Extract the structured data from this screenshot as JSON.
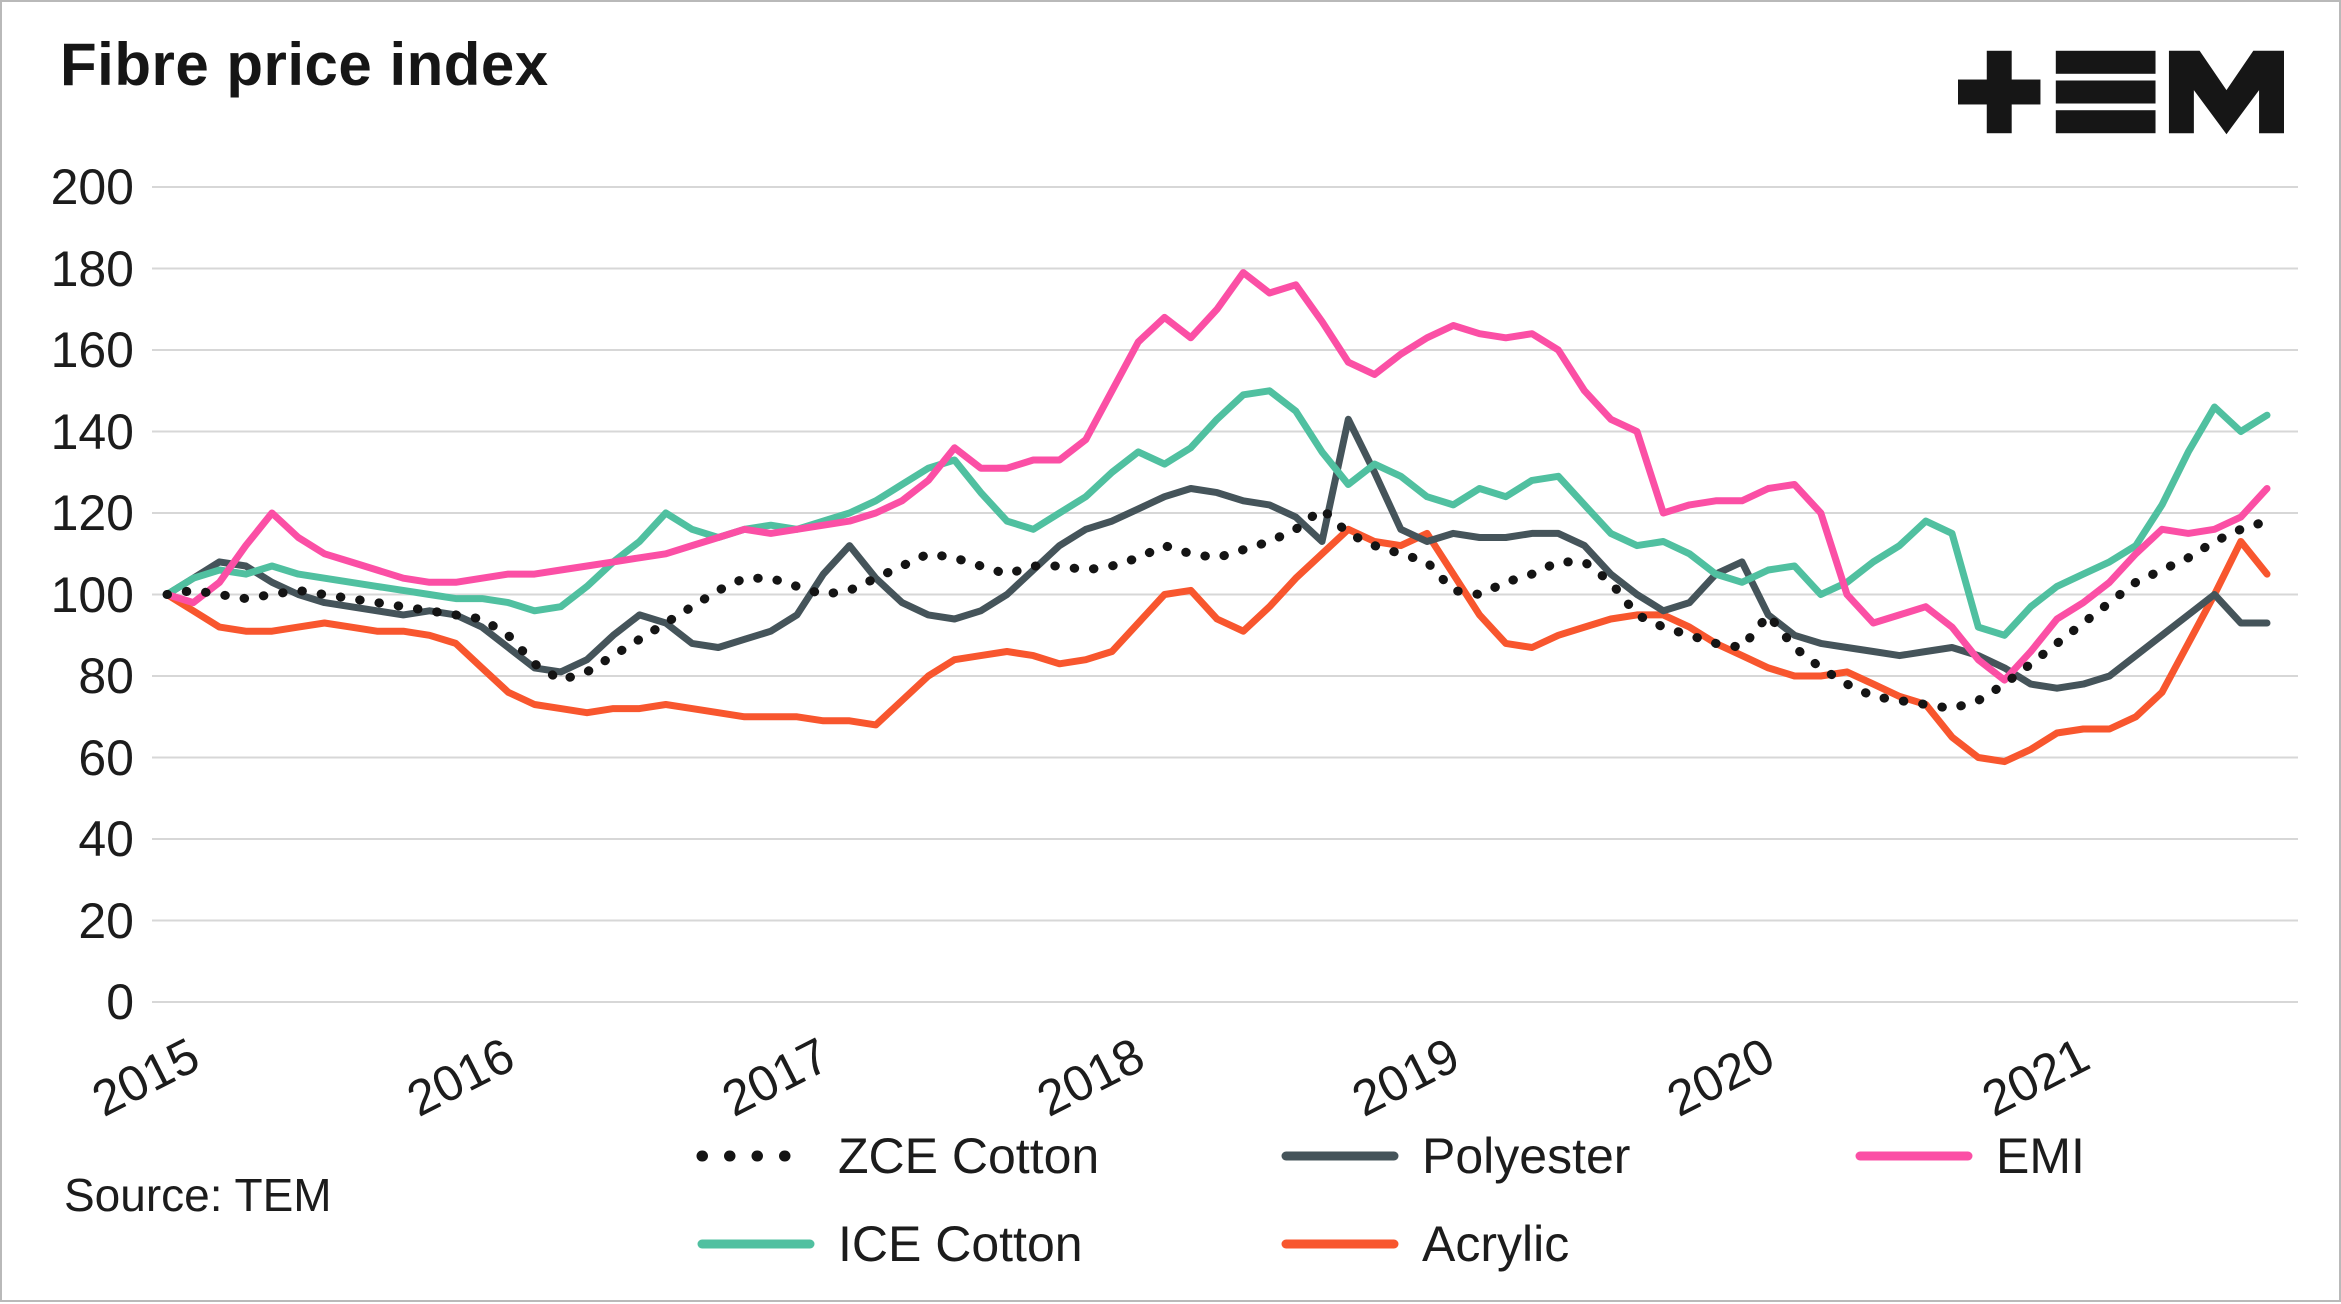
{
  "title": "Fibre price index",
  "source_note": "Source: TEM",
  "logo": {
    "name": "tem-logo",
    "color": "#161616"
  },
  "colors": {
    "grid": "#d7d7d7",
    "text": "#1c1c1c",
    "zce_cotton": "#141414",
    "polyester": "#45545a",
    "emi": "#fb4fa5",
    "ice_cotton": "#50c0a0",
    "acrylic": "#f8562e"
  },
  "chart_data": {
    "type": "line",
    "title": "Fibre price index",
    "x_unit": "month",
    "x_start": "2015-01",
    "x_end": "2021-09",
    "xtick_labels": [
      "2015",
      "2016",
      "2017",
      "2018",
      "2019",
      "2020",
      "2021"
    ],
    "ytick_values": [
      0,
      20,
      40,
      60,
      80,
      100,
      120,
      140,
      160,
      180,
      200
    ],
    "ylim": [
      0,
      200
    ],
    "grid": "horizontal",
    "legend_position": "bottom",
    "legend_rows": [
      [
        "ZCE Cotton",
        "Polyester",
        "EMI"
      ],
      [
        "ICE Cotton",
        "Acrylic"
      ]
    ],
    "series": [
      {
        "name": "ZCE Cotton",
        "color": "#141414",
        "style": "dotted",
        "values": [
          100,
          101,
          100,
          99,
          100,
          101,
          100,
          99,
          98,
          97,
          96,
          95,
          94,
          90,
          83,
          79,
          81,
          85,
          89,
          93,
          97,
          101,
          104,
          104,
          102,
          100,
          101,
          104,
          107,
          110,
          109,
          107,
          105,
          107,
          107,
          106,
          107,
          109,
          112,
          110,
          109,
          111,
          113,
          116,
          121,
          115,
          112,
          110,
          108,
          101,
          100,
          103,
          105,
          108,
          108,
          103,
          95,
          92,
          90,
          88,
          87,
          95,
          87,
          82,
          78,
          75,
          74,
          73,
          72,
          74,
          78,
          83,
          88,
          93,
          98,
          103,
          106,
          109,
          113,
          116,
          118
        ]
      },
      {
        "name": "Polyester",
        "color": "#45545a",
        "style": "solid",
        "values": [
          100,
          104,
          108,
          107,
          103,
          100,
          98,
          97,
          96,
          95,
          96,
          95,
          92,
          87,
          82,
          81,
          84,
          90,
          95,
          93,
          88,
          87,
          89,
          91,
          95,
          105,
          112,
          104,
          98,
          95,
          94,
          96,
          100,
          106,
          112,
          116,
          118,
          121,
          124,
          126,
          125,
          123,
          122,
          119,
          113,
          143,
          130,
          116,
          113,
          115,
          114,
          114,
          115,
          115,
          112,
          105,
          100,
          96,
          98,
          105,
          108,
          95,
          90,
          88,
          87,
          86,
          85,
          86,
          87,
          85,
          82,
          78,
          77,
          78,
          80,
          85,
          90,
          95,
          100,
          93,
          93
        ]
      },
      {
        "name": "EMI",
        "color": "#fb4fa5",
        "style": "solid",
        "values": [
          100,
          98,
          103,
          112,
          120,
          114,
          110,
          108,
          106,
          104,
          103,
          103,
          104,
          105,
          105,
          106,
          107,
          108,
          109,
          110,
          112,
          114,
          116,
          115,
          116,
          117,
          118,
          120,
          123,
          128,
          136,
          131,
          131,
          133,
          133,
          138,
          150,
          162,
          168,
          163,
          170,
          179,
          174,
          176,
          167,
          157,
          154,
          159,
          163,
          166,
          164,
          163,
          164,
          160,
          150,
          143,
          140,
          120,
          122,
          123,
          123,
          126,
          127,
          120,
          100,
          93,
          95,
          97,
          92,
          84,
          79,
          86,
          94,
          98,
          103,
          110,
          116,
          115,
          116,
          119,
          126
        ]
      },
      {
        "name": "ICE Cotton",
        "color": "#50c0a0",
        "style": "solid",
        "values": [
          100,
          104,
          106,
          105,
          107,
          105,
          104,
          103,
          102,
          101,
          100,
          99,
          99,
          98,
          96,
          97,
          102,
          108,
          113,
          120,
          116,
          114,
          116,
          117,
          116,
          118,
          120,
          123,
          127,
          131,
          133,
          125,
          118,
          116,
          120,
          124,
          130,
          135,
          132,
          136,
          143,
          149,
          150,
          145,
          135,
          127,
          132,
          129,
          124,
          122,
          126,
          124,
          128,
          129,
          122,
          115,
          112,
          113,
          110,
          105,
          103,
          106,
          107,
          100,
          103,
          108,
          112,
          118,
          115,
          92,
          90,
          97,
          102,
          105,
          108,
          112,
          122,
          135,
          146,
          140,
          144
        ]
      },
      {
        "name": "Acrylic",
        "color": "#f8562e",
        "style": "solid",
        "values": [
          100,
          96,
          92,
          91,
          91,
          92,
          93,
          92,
          91,
          91,
          90,
          88,
          82,
          76,
          73,
          72,
          71,
          72,
          72,
          73,
          72,
          71,
          70,
          70,
          70,
          69,
          69,
          68,
          74,
          80,
          84,
          85,
          86,
          85,
          83,
          84,
          86,
          93,
          100,
          101,
          94,
          91,
          97,
          104,
          110,
          116,
          113,
          112,
          115,
          105,
          95,
          88,
          87,
          90,
          92,
          94,
          95,
          95,
          92,
          88,
          85,
          82,
          80,
          80,
          81,
          78,
          75,
          73,
          65,
          60,
          59,
          62,
          66,
          67,
          67,
          70,
          76,
          88,
          100,
          113,
          105
        ]
      }
    ]
  }
}
